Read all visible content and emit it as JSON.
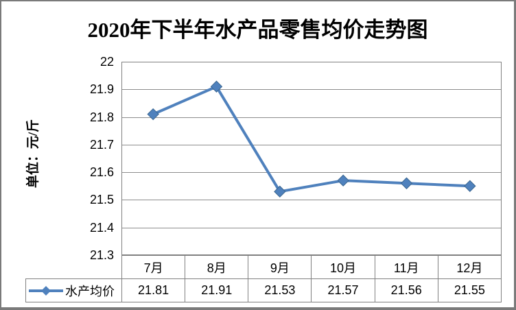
{
  "chart_data": {
    "type": "line",
    "title": "2020年下半年水产品零售均价走势图",
    "ylabel": "单位：元/斤",
    "xlabel": "",
    "categories": [
      "7月",
      "8月",
      "9月",
      "10月",
      "11月",
      "12月"
    ],
    "series": [
      {
        "name": "水产均价",
        "values": [
          21.81,
          21.91,
          21.53,
          21.57,
          21.56,
          21.55
        ]
      }
    ],
    "ylim": [
      21.3,
      22
    ],
    "ytick_step": 0.1,
    "yticks": [
      "22",
      "21.9",
      "21.8",
      "21.7",
      "21.6",
      "21.5",
      "21.4",
      "21.3"
    ],
    "grid": true,
    "legend_position": "data-table-left",
    "marker": "diamond",
    "line_color": "#4F81BD",
    "marker_border_color": "#3A6690"
  },
  "colors": {
    "grid": "#8C8C8C",
    "plot_border": "#808080",
    "table_border": "#808080",
    "frame_border": "#7A7A7A",
    "background": "#FFFFFF",
    "text": "#000000"
  }
}
